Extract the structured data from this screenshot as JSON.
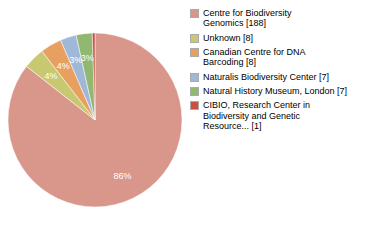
{
  "chart_data": {
    "type": "pie",
    "categories": [
      "Centre for Biodiversity\nGenomics [188]",
      "Unknown [8]",
      "Canadian Centre for DNA\nBarcoding [8]",
      "Naturalis Biodiversity Center [7]",
      "Natural History Museum, London [7]",
      "CIBIO, Research Center in\nBiodiversity and Genetic\nResource... [1]"
    ],
    "values": [
      86,
      4,
      4,
      3,
      3,
      0.5
    ],
    "value_labels": [
      "86%",
      "4%",
      "4%",
      "3%",
      "3%",
      null
    ],
    "colors": [
      "#d9968a",
      "#c8c870",
      "#e8a060",
      "#a0b8d8",
      "#90b870",
      "#c85040"
    ],
    "data_labels": true,
    "legend": "right"
  }
}
